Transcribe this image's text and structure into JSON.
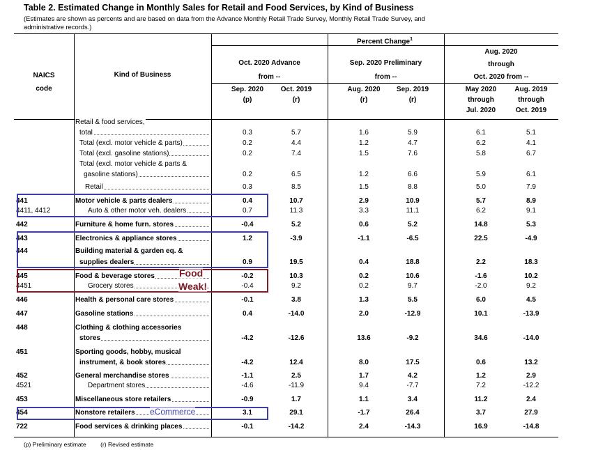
{
  "title": "Table 2.  Estimated Change in Monthly Sales for Retail and Food Services, by Kind of Business",
  "subtitle": "(Estimates are shown as percents and are based on data from the Advance Monthly Retail Trade Survey,  Monthly Retail Trade Survey, and administrative records.)",
  "header": {
    "naics": "NAICS",
    "code": "code",
    "kind": "Kind of Business",
    "percent_change": "Percent Change",
    "footnote_mark": "1",
    "group1_line1": "Oct. 2020 Advance",
    "group1_line2": "from --",
    "group2_line1": "Sep. 2020 Preliminary",
    "group2_line2": "from --",
    "group3_line1": "Aug. 2020",
    "group3_line2": "through",
    "group3_line3": "Oct. 2020 from --",
    "cols": [
      {
        "l1": "Sep. 2020",
        "l2": "(p)",
        "l3": ""
      },
      {
        "l1": "Oct. 2019",
        "l2": "(r)",
        "l3": ""
      },
      {
        "l1": "Aug. 2020",
        "l2": "(r)",
        "l3": ""
      },
      {
        "l1": "Sep. 2019",
        "l2": "(r)",
        "l3": ""
      },
      {
        "l1": "May 2020",
        "l2": "through",
        "l3": "Jul. 2020"
      },
      {
        "l1": "Aug. 2019",
        "l2": "through",
        "l3": "Oct. 2019"
      }
    ]
  },
  "rows": [
    {
      "code": "",
      "label": "Retail & food services,",
      "indent": 0,
      "dots": false,
      "bold": false,
      "values": []
    },
    {
      "code": "",
      "label": "total",
      "indent": 6,
      "dots": true,
      "bold": false,
      "values": [
        "0.3",
        "5.7",
        "1.6",
        "5.9",
        "6.1",
        "5.1"
      ]
    },
    {
      "code": "",
      "label": "Total (excl. motor vehicle & parts)",
      "indent": 6,
      "dots": true,
      "bold": false,
      "values": [
        "0.2",
        "4.4",
        "1.2",
        "4.7",
        "6.2",
        "4.1"
      ]
    },
    {
      "code": "",
      "label": "Total (excl. gasoline stations)",
      "indent": 6,
      "dots": true,
      "bold": false,
      "values": [
        "0.2",
        "7.4",
        "1.5",
        "7.6",
        "5.8",
        "6.7"
      ]
    },
    {
      "code": "",
      "label": "Total (excl. motor vehicle & parts &",
      "indent": 6,
      "dots": false,
      "bold": false,
      "values": []
    },
    {
      "code": "",
      "label": "gasoline stations)",
      "indent": 12,
      "dots": true,
      "bold": false,
      "values": [
        "0.2",
        "6.5",
        "1.2",
        "6.6",
        "5.9",
        "6.1"
      ]
    },
    {
      "code": "",
      "label": "Retail",
      "indent": 14,
      "dots": true,
      "bold": false,
      "values": [
        "0.3",
        "8.5",
        "1.5",
        "8.8",
        "5.0",
        "7.9"
      ]
    },
    {
      "code": "441",
      "label": "Motor vehicle & parts dealers",
      "indent": 0,
      "dots": true,
      "bold": true,
      "values": [
        "0.4",
        "10.7",
        "2.9",
        "10.9",
        "5.7",
        "8.9"
      ]
    },
    {
      "code": "4411, 4412",
      "label": "Auto & other motor veh. dealers",
      "indent": 18,
      "dots": true,
      "bold": false,
      "values": [
        "0.7",
        "11.3",
        "3.3",
        "11.1",
        "6.2",
        "9.1"
      ]
    },
    {
      "code": "442",
      "label": "Furniture & home furn. stores",
      "indent": 0,
      "dots": true,
      "bold": true,
      "values": [
        "-0.4",
        "5.2",
        "0.6",
        "5.2",
        "14.8",
        "5.3"
      ]
    },
    {
      "code": "443",
      "label": "Electronics & appliance stores",
      "indent": 0,
      "dots": true,
      "bold": true,
      "values": [
        "1.2",
        "-3.9",
        "-1.1",
        "-6.5",
        "22.5",
        "-4.9"
      ]
    },
    {
      "code": "444",
      "label": "Building material & garden eq. &",
      "indent": 0,
      "dots": false,
      "bold": true,
      "values": []
    },
    {
      "code": "",
      "label": "supplies dealers",
      "indent": 6,
      "dots": true,
      "bold": true,
      "values": [
        "0.9",
        "19.5",
        "0.4",
        "18.8",
        "2.2",
        "18.3"
      ]
    },
    {
      "code": "445",
      "label": "Food & beverage stores",
      "indent": 0,
      "dots": true,
      "bold": true,
      "values": [
        "-0.2",
        "10.3",
        "0.2",
        "10.6",
        "-1.6",
        "10.2"
      ]
    },
    {
      "code": "4451",
      "label": "Grocery stores",
      "indent": 18,
      "dots": true,
      "bold": false,
      "values": [
        "-0.4",
        "9.2",
        "0.2",
        "9.7",
        "-2.0",
        "9.2"
      ]
    },
    {
      "code": "446",
      "label": "Health & personal care stores",
      "indent": 0,
      "dots": true,
      "bold": true,
      "values": [
        "-0.1",
        "3.8",
        "1.3",
        "5.5",
        "6.0",
        "4.5"
      ]
    },
    {
      "code": "447",
      "label": "Gasoline stations",
      "indent": 0,
      "dots": true,
      "bold": true,
      "values": [
        "0.4",
        "-14.0",
        "2.0",
        "-12.9",
        "10.1",
        "-13.9"
      ]
    },
    {
      "code": "448",
      "label": "Clothing & clothing accessories",
      "indent": 0,
      "dots": false,
      "bold": true,
      "values": []
    },
    {
      "code": "",
      "label": "stores",
      "indent": 6,
      "dots": true,
      "bold": true,
      "values": [
        "-4.2",
        "-12.6",
        "13.6",
        "-9.2",
        "34.6",
        "-14.0"
      ]
    },
    {
      "code": "451",
      "label": "Sporting goods, hobby, musical",
      "indent": 0,
      "dots": false,
      "bold": true,
      "values": []
    },
    {
      "code": "",
      "label": "instrument, & book stores",
      "indent": 6,
      "dots": true,
      "bold": true,
      "values": [
        "-4.2",
        "12.4",
        "8.0",
        "17.5",
        "0.6",
        "13.2"
      ]
    },
    {
      "code": "452",
      "label": "General merchandise stores",
      "indent": 0,
      "dots": true,
      "bold": true,
      "values": [
        "-1.1",
        "2.5",
        "1.7",
        "4.2",
        "1.2",
        "2.9"
      ]
    },
    {
      "code": "4521",
      "label": "Department stores",
      "indent": 18,
      "dots": true,
      "bold": false,
      "values": [
        "-4.6",
        "-11.9",
        "9.4",
        "-7.7",
        "7.2",
        "-12.2"
      ]
    },
    {
      "code": "453",
      "label": "Miscellaneous store retailers",
      "indent": 0,
      "dots": true,
      "bold": true,
      "values": [
        "-0.9",
        "1.7",
        "1.1",
        "3.4",
        "11.2",
        "2.4"
      ]
    },
    {
      "code": "454",
      "label": "Nonstore retailers",
      "indent": 0,
      "dots": true,
      "bold": true,
      "values": [
        "3.1",
        "29.1",
        "-1.7",
        "26.4",
        "3.7",
        "27.9"
      ]
    },
    {
      "code": "722",
      "label": "Food services & drinking places",
      "indent": 0,
      "dots": true,
      "bold": true,
      "values": [
        "-0.1",
        "-14.2",
        "2.4",
        "-14.3",
        "16.9",
        "-14.8"
      ]
    }
  ],
  "annotations": {
    "food": "Food",
    "weak": "Weak!",
    "ecommerce": "eCommerce",
    "box_color_blue": "#3c3fa8",
    "box_color_red": "#7c1c25"
  },
  "footer": {
    "p": "(p)  Preliminary estimate",
    "r": "(r)  Revised estimate"
  }
}
